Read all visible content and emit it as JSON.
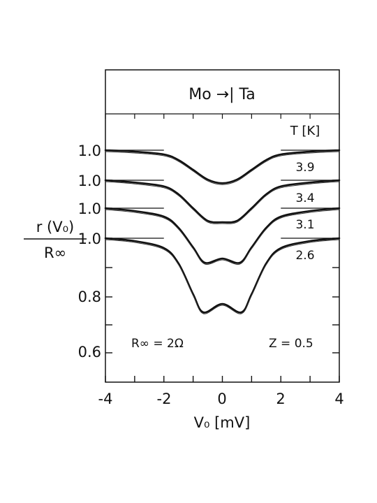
{
  "chart_data": {
    "type": "line",
    "title": "Mo →| Ta",
    "xlabel": "V₀ [mV]",
    "ylabel_top": "r (V₀)",
    "ylabel_bottom": "R∞",
    "xlim": [
      -4,
      4
    ],
    "x_ticks": [
      "-4",
      "-2",
      "0",
      "2",
      "4"
    ],
    "y_ticks": [
      "1.0",
      "1.0",
      "1.0",
      "1.0",
      "0.8",
      "0.6"
    ],
    "legend_title": "T [K]",
    "annotations": {
      "r_inf": "R∞ = 2Ω",
      "z": "Z = 0.5"
    },
    "grid": false,
    "series": [
      {
        "name": "3.9",
        "x": [
          -4,
          -3,
          -2,
          -1.5,
          -1,
          -0.5,
          0,
          0.5,
          1,
          1.5,
          2,
          3,
          4
        ],
        "y": [
          1.0,
          0.995,
          0.985,
          0.965,
          0.93,
          0.895,
          0.882,
          0.895,
          0.93,
          0.965,
          0.985,
          0.995,
          1.0
        ]
      },
      {
        "name": "3.4",
        "x": [
          -4,
          -3,
          -2,
          -1.5,
          -1,
          -0.5,
          0,
          0.5,
          1,
          1.5,
          2,
          3,
          4
        ],
        "y": [
          1.0,
          0.992,
          0.978,
          0.95,
          0.9,
          0.855,
          0.85,
          0.855,
          0.9,
          0.95,
          0.978,
          0.992,
          1.0
        ]
      },
      {
        "name": "3.1",
        "x": [
          -4,
          -3,
          -2,
          -1.5,
          -1,
          -0.6,
          0,
          0.6,
          1,
          1.5,
          2,
          3,
          4
        ],
        "y": [
          1.0,
          0.99,
          0.97,
          0.93,
          0.86,
          0.805,
          0.82,
          0.805,
          0.86,
          0.93,
          0.97,
          0.99,
          1.0
        ]
      },
      {
        "name": "2.6",
        "x": [
          -4,
          -3,
          -2,
          -1.5,
          -1,
          -0.65,
          0,
          0.65,
          1,
          1.5,
          2,
          3,
          4
        ],
        "y": [
          1.0,
          0.99,
          0.965,
          0.91,
          0.8,
          0.735,
          0.765,
          0.735,
          0.8,
          0.91,
          0.965,
          0.99,
          1.0
        ]
      }
    ]
  }
}
